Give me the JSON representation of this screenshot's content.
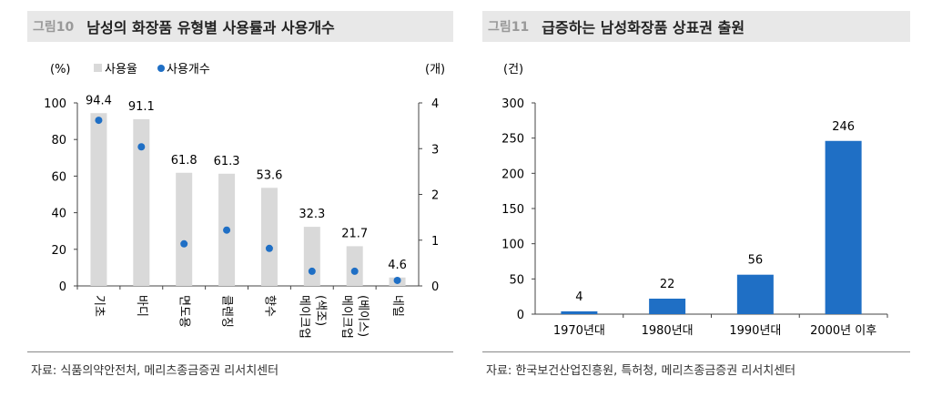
{
  "left": {
    "fig_num": "그림10",
    "title": "남성의 화장품 유형별 사용률과 사용개수",
    "source": "자료: 식품의약안전처, 메리츠종금증권 리서치센터"
  },
  "right": {
    "fig_num": "그림11",
    "title": "급증하는 남성화장품 상표권 출원",
    "source": "자료: 한국보건산업진흥원, 특허청, 메리츠종금증권 리서치센터"
  },
  "chart_data": [
    {
      "type": "bar",
      "categories": [
        "기초",
        "바디",
        "면도용",
        "클렌징",
        "향수",
        "메이크업\n(색조)",
        "메이크업\n(베이스)",
        "네일"
      ],
      "series": [
        {
          "name": "사용율",
          "type": "bar",
          "axis": "left",
          "values": [
            94.4,
            91.1,
            61.8,
            61.3,
            53.6,
            32.3,
            21.7,
            4.6
          ],
          "color": "#d9d9d9"
        },
        {
          "name": "사용개수",
          "type": "scatter",
          "axis": "right",
          "values": [
            3.62,
            3.04,
            0.92,
            1.22,
            0.82,
            0.32,
            0.32,
            0.12
          ],
          "color": "#1f6fc5"
        }
      ],
      "ylabel_left": "(%)",
      "ylabel_right": "(개)",
      "ylim_left": [
        0,
        100
      ],
      "yticks_left": [
        0,
        20,
        40,
        60,
        80,
        100
      ],
      "ylim_right": [
        0,
        4
      ],
      "yticks_right": [
        0,
        1,
        2,
        3,
        4
      ],
      "legend": "top"
    },
    {
      "type": "bar",
      "categories": [
        "1970년대",
        "1980년대",
        "1990년대",
        "2000년 이후"
      ],
      "values": [
        4,
        22,
        56,
        246
      ],
      "color": "#1f6fc5",
      "ylabel": "(건)",
      "ylim": [
        0,
        300
      ],
      "yticks": [
        0,
        50,
        100,
        150,
        200,
        250,
        300
      ]
    }
  ]
}
